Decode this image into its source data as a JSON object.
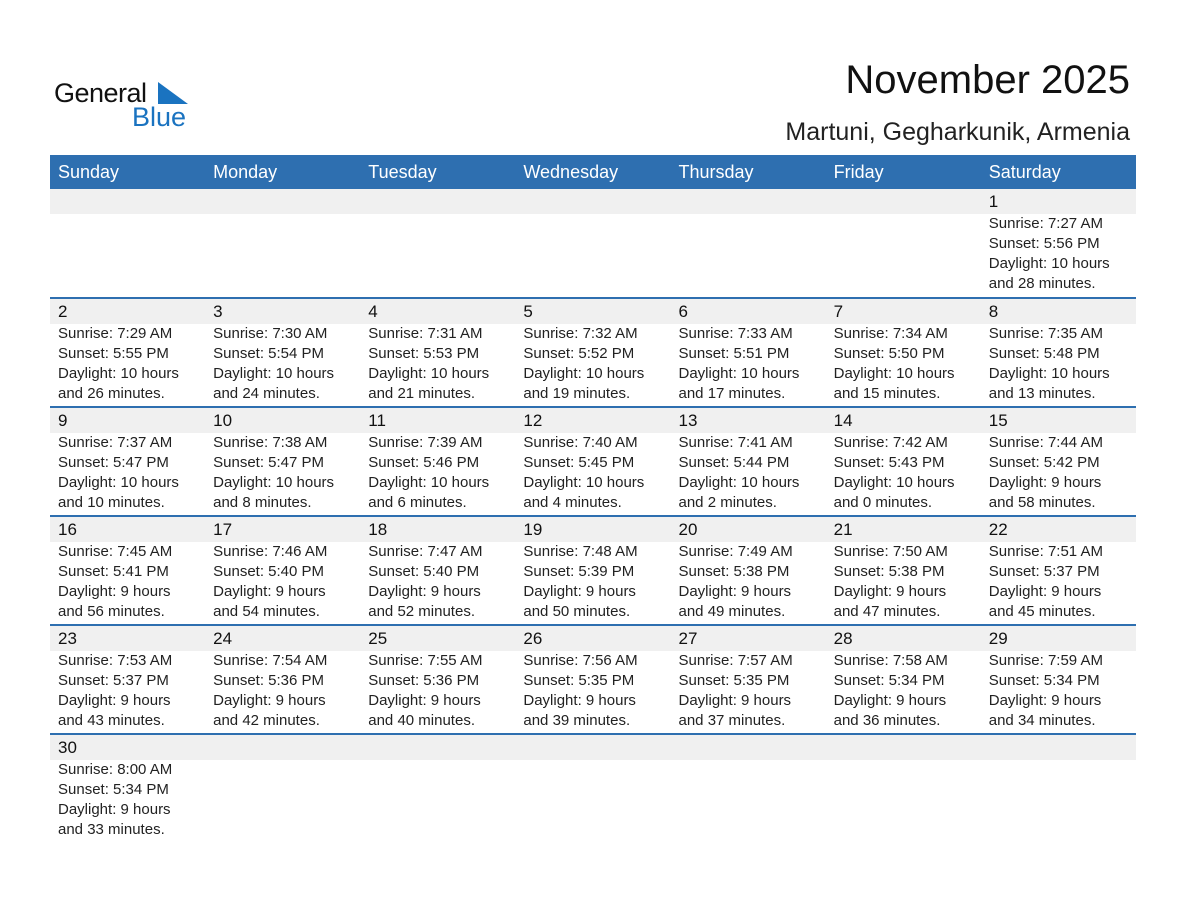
{
  "logo": {
    "word1": "General",
    "word2": "Blue",
    "color": "#1a73c0"
  },
  "title": "November 2025",
  "subtitle": "Martuni, Gegharkunik, Armenia",
  "colors": {
    "header": "#2e6fb0",
    "day_band": "#f0f0f0"
  },
  "weekdays": [
    "Sunday",
    "Monday",
    "Tuesday",
    "Wednesday",
    "Thursday",
    "Friday",
    "Saturday"
  ],
  "weeks": [
    [
      null,
      null,
      null,
      null,
      null,
      null,
      {
        "day": "1",
        "lines": [
          "Sunrise: 7:27 AM",
          "Sunset: 5:56 PM",
          "Daylight: 10 hours",
          "and 28 minutes."
        ]
      }
    ],
    [
      {
        "day": "2",
        "lines": [
          "Sunrise: 7:29 AM",
          "Sunset: 5:55 PM",
          "Daylight: 10 hours",
          "and 26 minutes."
        ]
      },
      {
        "day": "3",
        "lines": [
          "Sunrise: 7:30 AM",
          "Sunset: 5:54 PM",
          "Daylight: 10 hours",
          "and 24 minutes."
        ]
      },
      {
        "day": "4",
        "lines": [
          "Sunrise: 7:31 AM",
          "Sunset: 5:53 PM",
          "Daylight: 10 hours",
          "and 21 minutes."
        ]
      },
      {
        "day": "5",
        "lines": [
          "Sunrise: 7:32 AM",
          "Sunset: 5:52 PM",
          "Daylight: 10 hours",
          "and 19 minutes."
        ]
      },
      {
        "day": "6",
        "lines": [
          "Sunrise: 7:33 AM",
          "Sunset: 5:51 PM",
          "Daylight: 10 hours",
          "and 17 minutes."
        ]
      },
      {
        "day": "7",
        "lines": [
          "Sunrise: 7:34 AM",
          "Sunset: 5:50 PM",
          "Daylight: 10 hours",
          "and 15 minutes."
        ]
      },
      {
        "day": "8",
        "lines": [
          "Sunrise: 7:35 AM",
          "Sunset: 5:48 PM",
          "Daylight: 10 hours",
          "and 13 minutes."
        ]
      }
    ],
    [
      {
        "day": "9",
        "lines": [
          "Sunrise: 7:37 AM",
          "Sunset: 5:47 PM",
          "Daylight: 10 hours",
          "and 10 minutes."
        ]
      },
      {
        "day": "10",
        "lines": [
          "Sunrise: 7:38 AM",
          "Sunset: 5:47 PM",
          "Daylight: 10 hours",
          "and 8 minutes."
        ]
      },
      {
        "day": "11",
        "lines": [
          "Sunrise: 7:39 AM",
          "Sunset: 5:46 PM",
          "Daylight: 10 hours",
          "and 6 minutes."
        ]
      },
      {
        "day": "12",
        "lines": [
          "Sunrise: 7:40 AM",
          "Sunset: 5:45 PM",
          "Daylight: 10 hours",
          "and 4 minutes."
        ]
      },
      {
        "day": "13",
        "lines": [
          "Sunrise: 7:41 AM",
          "Sunset: 5:44 PM",
          "Daylight: 10 hours",
          "and 2 minutes."
        ]
      },
      {
        "day": "14",
        "lines": [
          "Sunrise: 7:42 AM",
          "Sunset: 5:43 PM",
          "Daylight: 10 hours",
          "and 0 minutes."
        ]
      },
      {
        "day": "15",
        "lines": [
          "Sunrise: 7:44 AM",
          "Sunset: 5:42 PM",
          "Daylight: 9 hours",
          "and 58 minutes."
        ]
      }
    ],
    [
      {
        "day": "16",
        "lines": [
          "Sunrise: 7:45 AM",
          "Sunset: 5:41 PM",
          "Daylight: 9 hours",
          "and 56 minutes."
        ]
      },
      {
        "day": "17",
        "lines": [
          "Sunrise: 7:46 AM",
          "Sunset: 5:40 PM",
          "Daylight: 9 hours",
          "and 54 minutes."
        ]
      },
      {
        "day": "18",
        "lines": [
          "Sunrise: 7:47 AM",
          "Sunset: 5:40 PM",
          "Daylight: 9 hours",
          "and 52 minutes."
        ]
      },
      {
        "day": "19",
        "lines": [
          "Sunrise: 7:48 AM",
          "Sunset: 5:39 PM",
          "Daylight: 9 hours",
          "and 50 minutes."
        ]
      },
      {
        "day": "20",
        "lines": [
          "Sunrise: 7:49 AM",
          "Sunset: 5:38 PM",
          "Daylight: 9 hours",
          "and 49 minutes."
        ]
      },
      {
        "day": "21",
        "lines": [
          "Sunrise: 7:50 AM",
          "Sunset: 5:38 PM",
          "Daylight: 9 hours",
          "and 47 minutes."
        ]
      },
      {
        "day": "22",
        "lines": [
          "Sunrise: 7:51 AM",
          "Sunset: 5:37 PM",
          "Daylight: 9 hours",
          "and 45 minutes."
        ]
      }
    ],
    [
      {
        "day": "23",
        "lines": [
          "Sunrise: 7:53 AM",
          "Sunset: 5:37 PM",
          "Daylight: 9 hours",
          "and 43 minutes."
        ]
      },
      {
        "day": "24",
        "lines": [
          "Sunrise: 7:54 AM",
          "Sunset: 5:36 PM",
          "Daylight: 9 hours",
          "and 42 minutes."
        ]
      },
      {
        "day": "25",
        "lines": [
          "Sunrise: 7:55 AM",
          "Sunset: 5:36 PM",
          "Daylight: 9 hours",
          "and 40 minutes."
        ]
      },
      {
        "day": "26",
        "lines": [
          "Sunrise: 7:56 AM",
          "Sunset: 5:35 PM",
          "Daylight: 9 hours",
          "and 39 minutes."
        ]
      },
      {
        "day": "27",
        "lines": [
          "Sunrise: 7:57 AM",
          "Sunset: 5:35 PM",
          "Daylight: 9 hours",
          "and 37 minutes."
        ]
      },
      {
        "day": "28",
        "lines": [
          "Sunrise: 7:58 AM",
          "Sunset: 5:34 PM",
          "Daylight: 9 hours",
          "and 36 minutes."
        ]
      },
      {
        "day": "29",
        "lines": [
          "Sunrise: 7:59 AM",
          "Sunset: 5:34 PM",
          "Daylight: 9 hours",
          "and 34 minutes."
        ]
      }
    ],
    [
      {
        "day": "30",
        "lines": [
          "Sunrise: 8:00 AM",
          "Sunset: 5:34 PM",
          "Daylight: 9 hours",
          "and 33 minutes."
        ]
      },
      null,
      null,
      null,
      null,
      null,
      null
    ]
  ]
}
